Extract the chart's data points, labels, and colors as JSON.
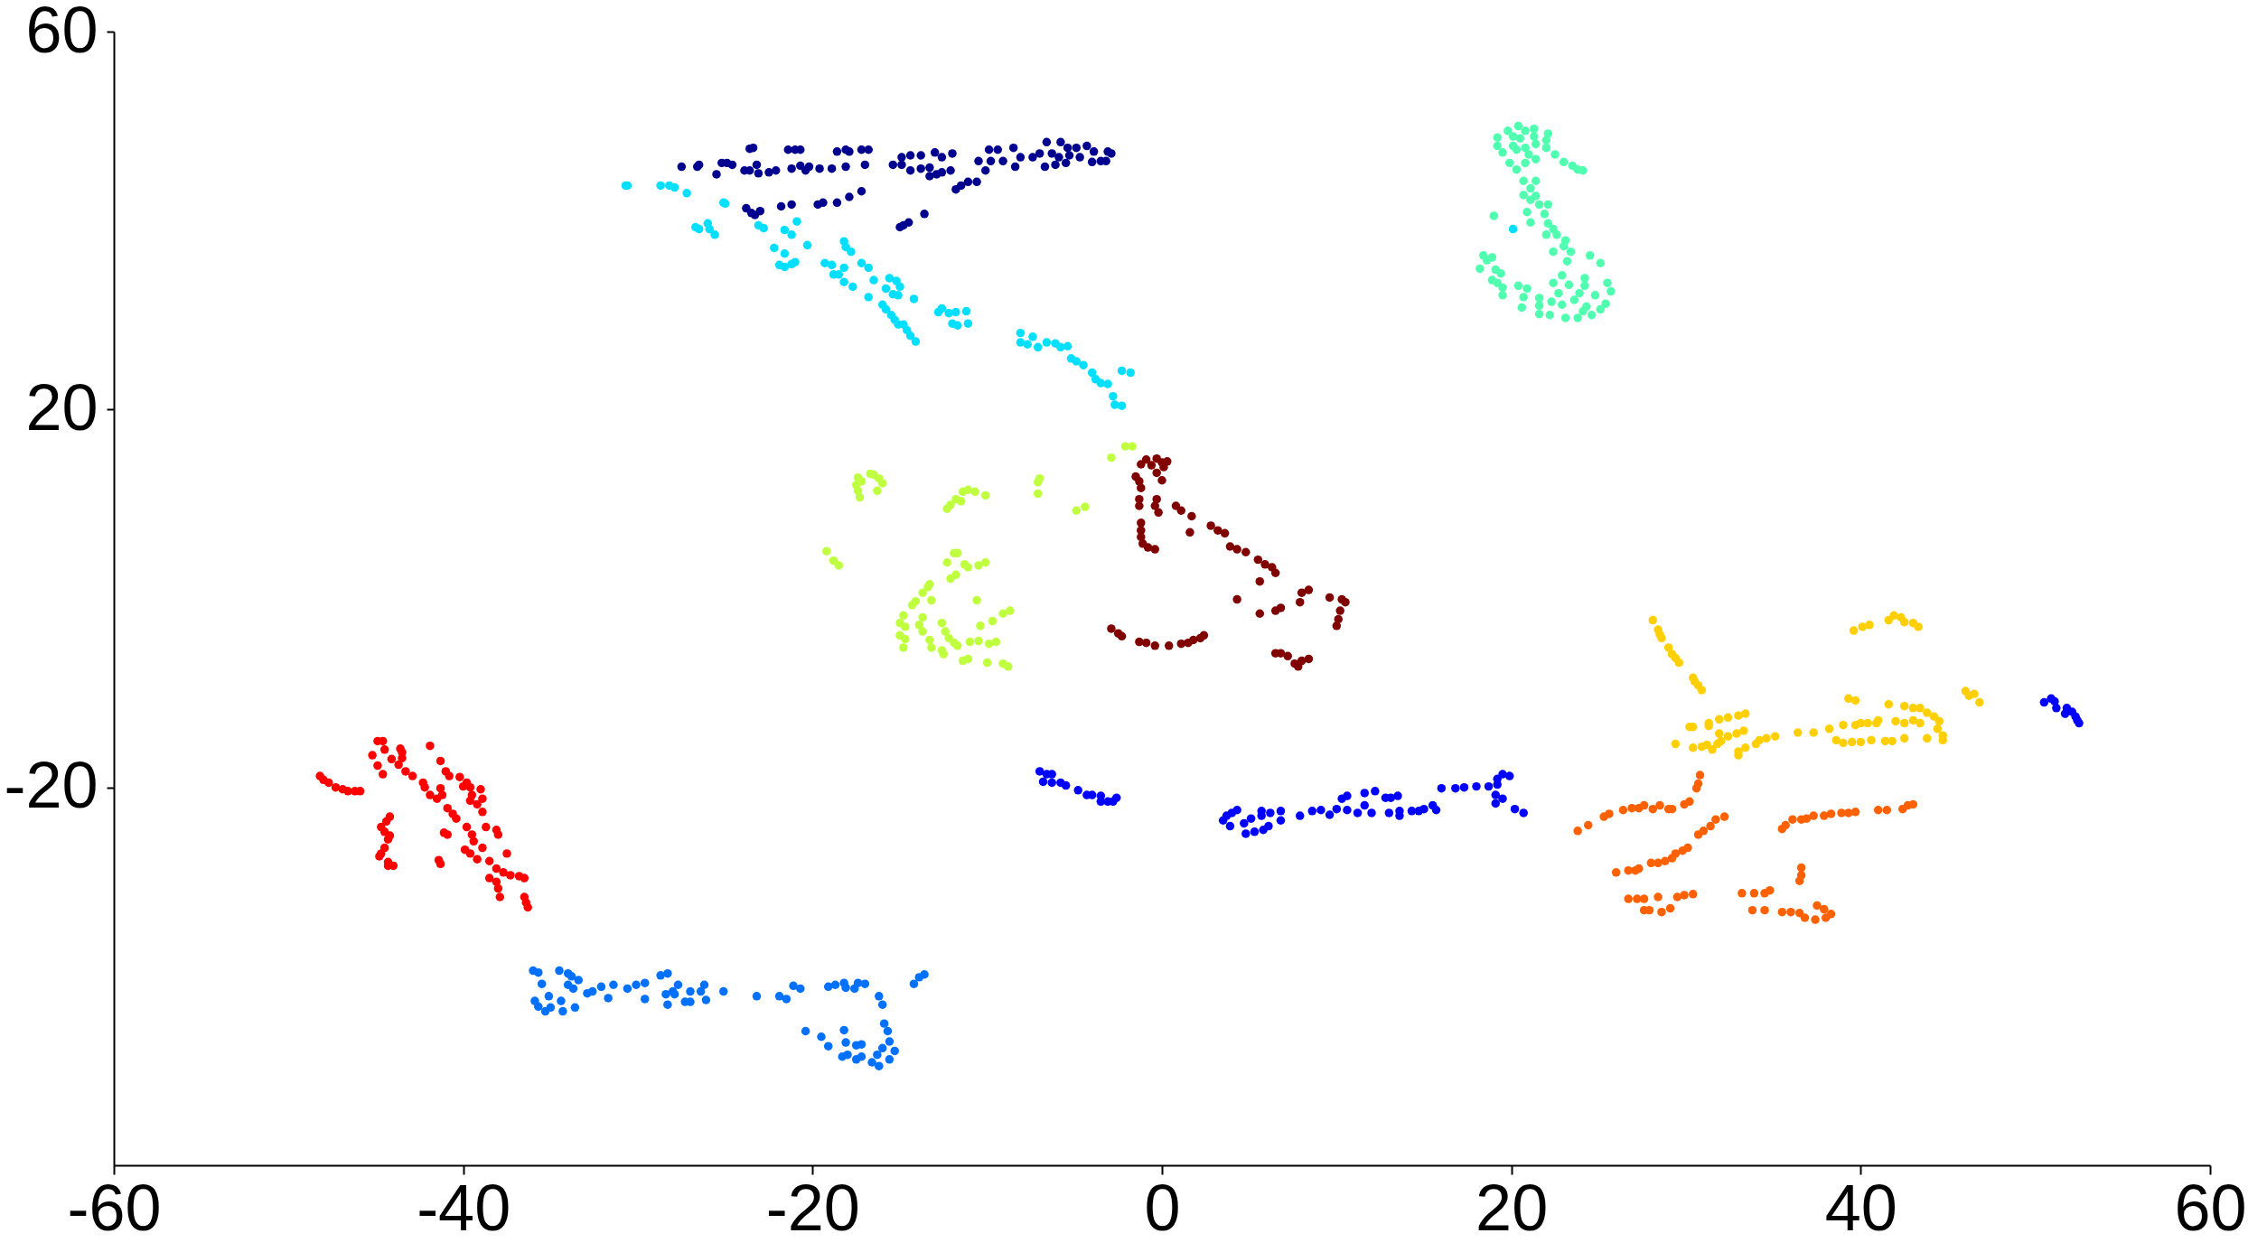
{
  "chart_data": {
    "type": "scatter",
    "marker": "circle",
    "xlim": [
      -60,
      60
    ],
    "ylim": [
      -60,
      60
    ],
    "xticks": [
      -60,
      -40,
      -20,
      0,
      20,
      40,
      60
    ],
    "yticks": [
      -20,
      20,
      60
    ],
    "series": [
      {
        "color": "#00008f",
        "x": [
          -23.6,
          -23.4,
          -21.4,
          -21.0,
          -20.7,
          -18.6,
          -18.1,
          -17.9,
          -17.2,
          -16.8,
          -14.9,
          -14.4,
          -13.8,
          -13.0,
          -12.6,
          -12.0,
          -9.9,
          -9.4,
          -8.5,
          -8.1,
          -7.4,
          -7.0,
          -6.6,
          -6.3,
          -5.8,
          -5.9,
          -5.4,
          -5.3,
          -4.9,
          -4.7,
          -4.3,
          -3.9,
          -4.0,
          -3.5,
          -3.2,
          -3.1,
          -2.9,
          -27.5,
          -26.6,
          -26.5,
          -25.5,
          -25.2,
          -24.9,
          -24.6,
          -23.9,
          -23.6,
          -23.2,
          -23.1,
          -22.5,
          -22.1,
          -21.2,
          -20.7,
          -20.4,
          -20.2,
          -19.6,
          -18.9,
          -18.1,
          -17.0,
          -15.4,
          -14.9,
          -14.4,
          -13.8,
          -13.3,
          -13.3,
          -12.9,
          -12.6,
          -12.1,
          -10.5,
          -10.1,
          -9.8,
          -9.1,
          -8.4,
          -6.7,
          -6.1,
          -5.5,
          -11.8,
          -11.5,
          -11.1,
          -10.6,
          -23.8,
          -23.5,
          -23.3,
          -23.0,
          -21.8,
          -21.2,
          -19.7,
          -19.4,
          -18.6,
          -17.9,
          -17.2,
          -15.0,
          -14.8,
          -14.5,
          -13.6
        ],
        "values": [
          47.6,
          47.7,
          47.5,
          47.5,
          47.5,
          47.3,
          47.5,
          47.3,
          47.5,
          47.5,
          46.7,
          46.9,
          46.9,
          47.2,
          46.7,
          47.1,
          47.5,
          47.5,
          47.7,
          46.7,
          46.7,
          47.1,
          48.3,
          47.1,
          48.3,
          46.7,
          47.7,
          46.9,
          47.7,
          46.7,
          47.9,
          47.3,
          46.2,
          46.3,
          46.3,
          47.3,
          47.1,
          45.7,
          45.7,
          45.9,
          44.9,
          46.1,
          46.1,
          45.9,
          45.3,
          45.3,
          45.9,
          45.0,
          45.1,
          45.3,
          45.5,
          45.8,
          45.3,
          45.7,
          45.5,
          45.5,
          45.7,
          45.9,
          45.9,
          45.9,
          45.3,
          45.5,
          45.6,
          44.7,
          44.9,
          45.1,
          45.3,
          46.3,
          45.3,
          46.3,
          46.3,
          45.7,
          45.7,
          45.9,
          46.1,
          43.3,
          43.7,
          44.1,
          44.1,
          41.3,
          40.8,
          40.6,
          41.0,
          41.5,
          41.7,
          41.7,
          41.9,
          41.9,
          42.5,
          43.1,
          39.3,
          39.5,
          39.8,
          40.7
        ]
      },
      {
        "color": "#0000ff",
        "x": [
          -7.0,
          -6.8,
          -6.6,
          -6.3,
          -6.3,
          -5.8,
          -5.5,
          -4.8,
          -4.3,
          -4.0,
          -3.5,
          -3.5,
          -3.1,
          -2.8,
          -2.6,
          3.5,
          3.7,
          4.0,
          4.3,
          3.9,
          4.7,
          5.1,
          5.7,
          5.7,
          6.2,
          6.8,
          6.8,
          4.8,
          5.3,
          5.8,
          6.1,
          7.9,
          8.6,
          9.1,
          9.6,
          10.0,
          10.3,
          10.6,
          10.6,
          11.2,
          11.6,
          11.6,
          12.0,
          12.2,
          12.8,
          13.1,
          13.5,
          13.0,
          13.6,
          13.6,
          14.3,
          14.7,
          15.0,
          15.5,
          15.7,
          16.0,
          16.8,
          17.3,
          18.0,
          18.7,
          19.2,
          19.5,
          19.9,
          19.2,
          19.1,
          19.5,
          19.1,
          20.2,
          20.7,
          50.5,
          50.9,
          51.1,
          51.2,
          51.8,
          51.7,
          52.1,
          52.3,
          52.4,
          52.5
        ],
        "values": [
          -18.3,
          -19.4,
          -18.6,
          -18.6,
          -19.5,
          -19.5,
          -19.8,
          -20.3,
          -20.8,
          -20.8,
          -20.9,
          -21.5,
          -21.5,
          -21.5,
          -21.1,
          -23.5,
          -23.0,
          -22.7,
          -22.4,
          -24.1,
          -23.8,
          -23.3,
          -22.5,
          -23.0,
          -22.7,
          -22.5,
          -23.5,
          -24.9,
          -24.7,
          -24.5,
          -24.1,
          -23.0,
          -22.5,
          -22.4,
          -22.9,
          -22.3,
          -21.2,
          -20.9,
          -22.4,
          -22.7,
          -21.9,
          -20.6,
          -22.7,
          -20.4,
          -21.1,
          -21.1,
          -20.9,
          -22.7,
          -22.5,
          -23.0,
          -22.5,
          -22.5,
          -22.3,
          -21.9,
          -22.4,
          -20.1,
          -20.1,
          -20.0,
          -19.9,
          -19.9,
          -19.1,
          -18.6,
          -18.8,
          -19.7,
          -20.8,
          -21.2,
          -21.7,
          -22.3,
          -22.7,
          -11.0,
          -10.6,
          -10.9,
          -11.6,
          -11.6,
          -12.2,
          -12.0,
          -12.5,
          -12.9,
          -13.2
        ]
      },
      {
        "color": "#0070ff",
        "x": [
          -36.0,
          -35.7,
          -35.5,
          -34.5,
          -34.0,
          -33.8,
          -33.4,
          -34.0,
          -33.7,
          -35.9,
          -35.7,
          -35.3,
          -35.1,
          -35.0,
          -34.4,
          -34.3,
          -33.6,
          -32.9,
          -32.6,
          -32.1,
          -31.7,
          -31.4,
          -30.6,
          -30.1,
          -29.6,
          -29.6,
          -28.7,
          -28.3,
          -28.4,
          -28.0,
          -27.9,
          -27.7,
          -28.3,
          -27.3,
          -27.0,
          -27.0,
          -26.4,
          -26.2,
          -26.1,
          -25.1,
          -23.2,
          -21.9,
          -21.5,
          -21.1,
          -20.7,
          -19.1,
          -18.7,
          -18.2,
          -18.1,
          -17.6,
          -17.4,
          -17.0,
          -16.2,
          -16.0,
          -14.2,
          -13.9,
          -13.6,
          -20.4,
          -19.5,
          -19.1,
          -18.2,
          -18.1,
          -18.3,
          -18.0,
          -17.5,
          -17.5,
          -17.2,
          -17.2,
          -16.6,
          -16.2,
          -16.3,
          -15.9,
          -15.7,
          -15.6,
          -16.0,
          -15.6,
          -15.3
        ],
        "values": [
          -39.4,
          -39.6,
          -40.8,
          -39.4,
          -39.7,
          -40.0,
          -40.4,
          -40.9,
          -41.3,
          -42.6,
          -43.2,
          -43.7,
          -42.1,
          -43.3,
          -42.6,
          -43.7,
          -43.3,
          -41.8,
          -41.6,
          -41.1,
          -42.3,
          -40.9,
          -41.3,
          -40.9,
          -40.7,
          -42.4,
          -39.9,
          -39.7,
          -41.9,
          -41.6,
          -41.9,
          -40.9,
          -43.0,
          -42.7,
          -42.7,
          -41.6,
          -41.6,
          -40.9,
          -42.5,
          -41.6,
          -42.1,
          -42.1,
          -42.4,
          -41.0,
          -41.3,
          -41.1,
          -40.9,
          -40.7,
          -41.2,
          -41.3,
          -40.7,
          -40.8,
          -42.1,
          -43.0,
          -40.8,
          -40.1,
          -39.8,
          -45.8,
          -46.4,
          -47.4,
          -45.7,
          -47.0,
          -48.5,
          -48.3,
          -48.8,
          -47.3,
          -47.2,
          -48.5,
          -49.1,
          -49.5,
          -48.3,
          -45.0,
          -45.8,
          -46.9,
          -47.6,
          -48.8,
          -47.9
        ]
      },
      {
        "color": "#00dfff",
        "x": [
          -30.7,
          -30.6,
          -28.7,
          -28.2,
          -27.9,
          -27.2,
          -25.1,
          -25.0,
          -26.7,
          -26.5,
          -26.0,
          -25.9,
          -25.6,
          -23.1,
          -22.8,
          -20.9,
          -21.6,
          -21.2,
          -22.2,
          -21.6,
          -21.9,
          -21.6,
          -21.2,
          -21.0,
          -20.3,
          -19.3,
          -18.9,
          -18.2,
          -18.1,
          -17.8,
          -18.8,
          -18.5,
          -18.2,
          -18.2,
          -17.7,
          -17.2,
          -16.8,
          -16.5,
          -16.8,
          -15.6,
          -15.2,
          -15.0,
          -15.8,
          -15.4,
          -15.1,
          -14.2,
          -16.0,
          -15.8,
          -15.5,
          -15.3,
          -15.1,
          -14.8,
          -14.6,
          -14.4,
          -14.1,
          -12.8,
          -12.6,
          -12.2,
          -11.8,
          -11.2,
          -12.0,
          -11.7,
          -11.1,
          -8.1,
          -8.1,
          -7.7,
          -7.4,
          -7.1,
          -6.6,
          -6.1,
          -5.8,
          -5.4,
          -5.2,
          -4.9,
          -4.5,
          -4.0,
          -3.8,
          -3.5,
          -3.1,
          -2.3,
          -1.8,
          -2.8,
          -2.7,
          -2.3,
          20.1
        ],
        "values": [
          43.7,
          43.7,
          43.7,
          43.7,
          43.5,
          42.9,
          41.9,
          41.8,
          39.3,
          39.1,
          39.7,
          39.1,
          38.5,
          39.5,
          39.2,
          39.9,
          39.0,
          38.5,
          37.1,
          36.5,
          35.3,
          35.1,
          35.4,
          35.6,
          37.4,
          35.5,
          35.3,
          37.8,
          37.2,
          36.7,
          34.3,
          34.3,
          35.0,
          33.5,
          33.0,
          35.5,
          35.0,
          33.7,
          31.9,
          33.9,
          33.6,
          33.0,
          32.8,
          32.2,
          32.1,
          31.7,
          31.1,
          30.6,
          30.0,
          29.5,
          29.0,
          29.0,
          28.4,
          27.8,
          27.2,
          30.3,
          30.7,
          30.2,
          30.3,
          30.4,
          29.1,
          28.9,
          29.1,
          28.1,
          27.1,
          26.9,
          27.7,
          26.6,
          27.1,
          27.0,
          26.6,
          26.7,
          25.4,
          25.1,
          24.7,
          23.9,
          23.2,
          22.8,
          22.7,
          24.1,
          23.9,
          21.4,
          20.5,
          20.4,
          39.1
        ]
      },
      {
        "color": "#50ffaf",
        "x": [
          19.8,
          20.4,
          20.8,
          21.3,
          22.1,
          19.2,
          20.1,
          20.5,
          21.3,
          22.0,
          19.2,
          20.1,
          20.8,
          21.4,
          22.0,
          19.5,
          20.3,
          21.0,
          22.5,
          23.0,
          23.5,
          23.8,
          24.1,
          19.9,
          20.8,
          21.4,
          20.3,
          20.7,
          21.4,
          21.1,
          20.7,
          21.4,
          21.1,
          21.6,
          22.1,
          20.9,
          21.9,
          21.1,
          22.1,
          22.4,
          22.0,
          22.6,
          23.1,
          23.0,
          23.4,
          22.4,
          23.2,
          24.5,
          25.1,
          18.4,
          18.9,
          18.6,
          18.2,
          19.1,
          19.4,
          18.9,
          19.2,
          19.5,
          19.5,
          20.4,
          20.9,
          20.7,
          20.6,
          21.6,
          21.6,
          21.6,
          22.3,
          22.4,
          22.9,
          23.3,
          22.7,
          22.9,
          22.2,
          23.1,
          23.6,
          23.9,
          24.2,
          24.2,
          23.8,
          24.1,
          24.3,
          24.6,
          24.8,
          25.1,
          25.5,
          25.7,
          25.4,
          19.0
        ],
        "values": [
          49.5,
          50.0,
          49.5,
          49.7,
          49.2,
          48.8,
          48.9,
          48.7,
          48.9,
          48.5,
          47.9,
          47.9,
          47.7,
          48.1,
          47.7,
          47.2,
          47.5,
          47.0,
          47.0,
          46.2,
          45.8,
          45.4,
          45.3,
          46.1,
          46.1,
          46.5,
          45.4,
          44.2,
          44.2,
          43.4,
          42.7,
          42.6,
          42.2,
          41.7,
          41.7,
          40.9,
          40.7,
          39.8,
          39.7,
          39.1,
          38.5,
          38.5,
          37.9,
          37.3,
          36.7,
          36.7,
          35.7,
          36.3,
          35.5,
          36.3,
          36.1,
          35.8,
          34.9,
          34.8,
          34.4,
          33.7,
          33.4,
          32.9,
          32.1,
          33.1,
          32.8,
          31.9,
          30.8,
          31.8,
          31.0,
          30.1,
          31.4,
          33.4,
          34.2,
          33.2,
          32.3,
          31.1,
          30.0,
          29.7,
          31.6,
          32.3,
          33.9,
          33.1,
          29.7,
          30.4,
          30.9,
          30.0,
          32.1,
          30.6,
          33.4,
          32.5,
          31.2,
          40.5
        ]
      },
      {
        "color": "#bfff40",
        "x": [
          -17.4,
          -17.2,
          -17.5,
          -17.4,
          -17.3,
          -16.7,
          -16.5,
          -16.2,
          -16.0,
          -16.3,
          -12.3,
          -12.1,
          -11.8,
          -11.5,
          -11.4,
          -11.1,
          -10.7,
          -10.1,
          -7.0,
          -7.1,
          -7.1,
          -4.9,
          -4.4,
          -2.9,
          -2.1,
          -1.7,
          -19.2,
          -18.8,
          -18.5,
          -11.9,
          -11.7,
          -12.3,
          -11.3,
          -11.1,
          -10.5,
          -10.1,
          -11.8,
          -12.1,
          -13.3,
          -13.4,
          -13.7,
          -13.2,
          -14.3,
          -14.1,
          -10.6,
          -14.8,
          -15.0,
          -14.7,
          -13.7,
          -13.9,
          -13.7,
          -12.6,
          -12.4,
          -12.2,
          -11.9,
          -11.7,
          -15.0,
          -14.7,
          -14.8,
          -13.3,
          -13.2,
          -12.6,
          -12.5,
          -11.0,
          -10.5,
          -9.9,
          -9.5,
          -10.4,
          -9.7,
          -9.1,
          -8.7,
          -11.4,
          -11.1,
          -10.0,
          -9.1,
          -8.8
        ],
        "values": [
          12.8,
          12.4,
          12.0,
          11.4,
          10.7,
          13.2,
          13.1,
          12.7,
          12.2,
          11.4,
          9.5,
          9.9,
          10.5,
          10.3,
          11.3,
          11.5,
          11.3,
          10.9,
          12.7,
          12.3,
          11.1,
          9.3,
          9.7,
          14.9,
          16.1,
          16.1,
          5.0,
          4.0,
          3.5,
          4.8,
          4.8,
          3.8,
          3.6,
          3.3,
          3.5,
          3.8,
          2.5,
          2.1,
          1.5,
          1.2,
          0.6,
          -0.2,
          -0.7,
          -0.3,
          -0.2,
          -1.8,
          -2.6,
          -3.0,
          -2.0,
          -2.8,
          -3.5,
          -2.6,
          -3.5,
          -4.2,
          -4.7,
          -5.0,
          -3.9,
          -4.3,
          -5.2,
          -4.4,
          -5.2,
          -5.5,
          -5.9,
          -4.6,
          -4.5,
          -4.8,
          -4.6,
          -2.9,
          -2.4,
          -1.6,
          -1.3,
          -6.6,
          -6.4,
          -6.8,
          -6.9,
          -7.2
        ]
      },
      {
        "color": "#ffcf00",
        "x": [
          28.1,
          28.4,
          28.5,
          28.6,
          29.0,
          29.2,
          29.4,
          29.6,
          30.4,
          30.5,
          30.7,
          30.9,
          39.6,
          40.1,
          40.5,
          41.6,
          41.9,
          42.3,
          42.5,
          43.0,
          43.3,
          39.3,
          39.7,
          41.6,
          42.5,
          43.0,
          43.4,
          43.8,
          44.2,
          44.5,
          44.4,
          44.7,
          44.7,
          46.0,
          46.2,
          46.5,
          46.8,
          30.2,
          30.4,
          31.3,
          31.3,
          31.9,
          32.4,
          33.0,
          33.4,
          29.4,
          30.4,
          30.9,
          31.2,
          31.5,
          31.8,
          32.0,
          31.9,
          32.4,
          32.9,
          33.3,
          33.0,
          33.0,
          33.4,
          34.0,
          34.2,
          34.6,
          35.1,
          36.4,
          37.3,
          38.2,
          39.0,
          39.7,
          40.0,
          40.4,
          40.9,
          41.0,
          42.0,
          42.5,
          43.0,
          43.4,
          38.6,
          39.0,
          39.5,
          40.0,
          40.6,
          41.4,
          41.8,
          42.5,
          43.8
        ],
        "values": [
          -2.3,
          -3.3,
          -3.8,
          -4.2,
          -5.2,
          -5.9,
          -6.3,
          -6.8,
          -8.4,
          -8.8,
          -9.2,
          -9.7,
          -3.4,
          -3.0,
          -2.8,
          -2.3,
          -1.8,
          -2.0,
          -2.5,
          -2.6,
          -3.0,
          -10.6,
          -10.8,
          -11.2,
          -11.4,
          -11.6,
          -11.6,
          -12.1,
          -12.5,
          -13.0,
          -13.8,
          -14.5,
          -15.0,
          -9.8,
          -10.3,
          -10.1,
          -11.0,
          -13.6,
          -13.6,
          -13.2,
          -13.5,
          -12.8,
          -12.6,
          -12.4,
          -12.2,
          -15.4,
          -15.8,
          -15.7,
          -15.5,
          -16.0,
          -15.4,
          -15.1,
          -14.3,
          -14.6,
          -14.3,
          -14.0,
          -16.2,
          -16.6,
          -15.8,
          -15.4,
          -15.0,
          -14.8,
          -14.6,
          -14.2,
          -14.2,
          -13.8,
          -13.4,
          -13.4,
          -13.2,
          -13.2,
          -13.2,
          -12.9,
          -13.0,
          -13.2,
          -12.9,
          -13.2,
          -15.0,
          -15.3,
          -15.2,
          -15.2,
          -15.0,
          -15.1,
          -15.1,
          -14.8,
          -14.8
        ]
      },
      {
        "color": "#ff6000",
        "x": [
          30.8,
          30.7,
          30.6,
          30.2,
          29.9,
          23.8,
          24.4,
          25.3,
          25.6,
          26.4,
          26.9,
          27.3,
          27.6,
          28.1,
          28.5,
          29.0,
          29.2,
          26.0,
          26.7,
          27.1,
          27.3,
          28.0,
          28.4,
          28.8,
          29.2,
          29.4,
          29.8,
          30.1,
          30.7,
          31.0,
          31.4,
          31.7,
          32.2,
          26.7,
          27.2,
          27.6,
          28.4,
          29.5,
          29.9,
          30.4,
          27.6,
          27.9,
          28.6,
          29.1,
          33.2,
          33.9,
          34.5,
          34.8,
          33.8,
          34.5,
          35.5,
          36.0,
          36.5,
          36.8,
          37.4,
          38.0,
          38.3,
          37.9,
          37.5,
          36.6,
          36.6,
          36.5,
          35.5,
          35.7,
          36.1,
          36.6,
          36.9,
          37.3,
          37.9,
          38.3,
          38.9,
          39.3,
          39.7,
          41.0,
          41.5,
          42.4,
          42.7,
          43.0
        ],
        "values": [
          -18.7,
          -19.6,
          -20.1,
          -21.5,
          -21.8,
          -24.6,
          -24.0,
          -23.1,
          -22.8,
          -22.4,
          -22.2,
          -22.2,
          -21.9,
          -22.3,
          -21.9,
          -22.3,
          -22.3,
          -29.0,
          -28.8,
          -28.8,
          -28.6,
          -28.0,
          -28.0,
          -27.8,
          -27.5,
          -27.0,
          -26.7,
          -26.4,
          -25.0,
          -24.6,
          -24.1,
          -23.4,
          -23.1,
          -31.8,
          -31.8,
          -31.8,
          -31.6,
          -31.6,
          -31.4,
          -31.3,
          -33.0,
          -33.0,
          -33.2,
          -32.8,
          -31.2,
          -31.2,
          -31.2,
          -30.9,
          -33.0,
          -33.0,
          -33.2,
          -33.2,
          -33.3,
          -33.8,
          -34.0,
          -33.8,
          -33.4,
          -32.9,
          -32.5,
          -28.5,
          -29.3,
          -29.9,
          -24.4,
          -24.0,
          -23.4,
          -23.4,
          -23.3,
          -23.0,
          -23.0,
          -22.8,
          -22.7,
          -22.7,
          -22.6,
          -22.4,
          -22.4,
          -22.3,
          -21.9,
          -21.8
        ]
      },
      {
        "color": "#ff0000",
        "x": [
          -48.2,
          -48.0,
          -47.7,
          -47.3,
          -46.9,
          -46.6,
          -46.2,
          -45.9,
          -44.9,
          -44.6,
          -45.2,
          -44.9,
          -44.6,
          -44.5,
          -44.1,
          -43.7,
          -43.6,
          -43.5,
          -43.5,
          -43.3,
          -42.9,
          -42.3,
          -42.2,
          -41.9,
          -41.9,
          -41.5,
          -41.3,
          -41.2,
          -41.3,
          -41.0,
          -40.8,
          -40.9,
          -40.6,
          -40.4,
          -40.2,
          -40.0,
          -39.8,
          -39.6,
          -39.5,
          -39.6,
          -39.0,
          -38.9,
          -39.2,
          -38.9,
          -38.7,
          -38.1,
          -38.0,
          -39.8,
          -39.5,
          -39.4,
          -38.9,
          -39.9,
          -39.6,
          -39.2,
          -38.5,
          -38.1,
          -37.7,
          -37.3,
          -36.8,
          -36.5,
          -37.5,
          -38.5,
          -38.1,
          -38.0,
          -37.9,
          -36.5,
          -36.4,
          -36.3,
          -44.2,
          -44.4,
          -44.7,
          -44.5,
          -44.2,
          -44.3,
          -44.5,
          -44.7,
          -44.8,
          -44.3,
          -44.0,
          -44.3,
          -41.4,
          -41.3,
          -41.1,
          -40.9
        ],
        "values": [
          -18.8,
          -19.2,
          -19.5,
          -20.0,
          -20.2,
          -20.4,
          -20.4,
          -20.4,
          -15.1,
          -15.1,
          -16.6,
          -17.7,
          -18.6,
          -16.0,
          -17.0,
          -17.6,
          -15.9,
          -16.3,
          -16.9,
          -18.3,
          -18.8,
          -19.5,
          -20.0,
          -15.6,
          -20.8,
          -21.2,
          -20.1,
          -20.8,
          -17.2,
          -18.3,
          -18.8,
          -22.2,
          -22.8,
          -23.3,
          -18.9,
          -19.9,
          -19.5,
          -20.0,
          -20.8,
          -21.4,
          -20.2,
          -21.2,
          -21.8,
          -22.6,
          -24.2,
          -24.5,
          -25.0,
          -24.2,
          -25.0,
          -25.7,
          -26.4,
          -26.6,
          -27.0,
          -27.6,
          -27.8,
          -28.6,
          -29.0,
          -29.3,
          -29.4,
          -29.6,
          -27.0,
          -29.6,
          -30.0,
          -30.7,
          -31.6,
          -31.6,
          -32.2,
          -32.7,
          -23.1,
          -23.6,
          -24.2,
          -24.7,
          -25.1,
          -25.5,
          -26.4,
          -27.0,
          -27.3,
          -27.9,
          -28.3,
          -28.3,
          -27.7,
          -28.1,
          -24.8,
          -25.0
        ]
      },
      {
        "color": "#800000",
        "x": [
          -1.2,
          -0.9,
          -0.6,
          -0.3,
          0.0,
          0.3,
          0.1,
          -0.3,
          0.0,
          -1.5,
          -1.3,
          -1.2,
          -1.3,
          -1.3,
          -0.3,
          -0.4,
          -0.2,
          -1.2,
          -1.2,
          -1.2,
          -1.1,
          -0.8,
          -0.4,
          0.8,
          1.1,
          1.7,
          1.6,
          2.8,
          3.2,
          3.6,
          3.9,
          4.3,
          4.8,
          5.5,
          5.9,
          6.3,
          6.5,
          5.6,
          4.3,
          5.6,
          6.5,
          6.8,
          8.0,
          8.4,
          7.9,
          9.6,
          10.3,
          10.5,
          10.2,
          10.1,
          10.0,
          -2.9,
          -2.5,
          -2.3,
          -1.3,
          -0.9,
          -0.4,
          0.4,
          1.1,
          1.5,
          1.8,
          2.2,
          2.4,
          6.5,
          6.8,
          7.2,
          7.6,
          7.8,
          8.0,
          8.4
        ],
        "values": [
          14.2,
          14.7,
          14.1,
          14.8,
          14.4,
          14.5,
          13.9,
          13.3,
          12.5,
          12.9,
          12.4,
          11.7,
          10.5,
          9.8,
          10.5,
          9.8,
          9.1,
          8.0,
          7.2,
          6.5,
          5.8,
          5.4,
          5.2,
          9.8,
          9.3,
          8.7,
          7.0,
          7.7,
          7.2,
          6.9,
          5.5,
          5.2,
          4.9,
          4.1,
          3.6,
          3.3,
          2.7,
          1.8,
          -0.1,
          -1.6,
          -1.3,
          -1.0,
          0.6,
          0.9,
          -0.4,
          0.1,
          -0.1,
          -0.4,
          -1.3,
          -2.2,
          -2.9,
          -3.2,
          -3.7,
          -4.0,
          -4.6,
          -4.7,
          -5.0,
          -5.0,
          -4.8,
          -4.7,
          -4.4,
          -4.2,
          -3.9,
          -5.8,
          -5.8,
          -6.1,
          -6.9,
          -7.2,
          -6.6,
          -6.4
        ]
      }
    ]
  }
}
